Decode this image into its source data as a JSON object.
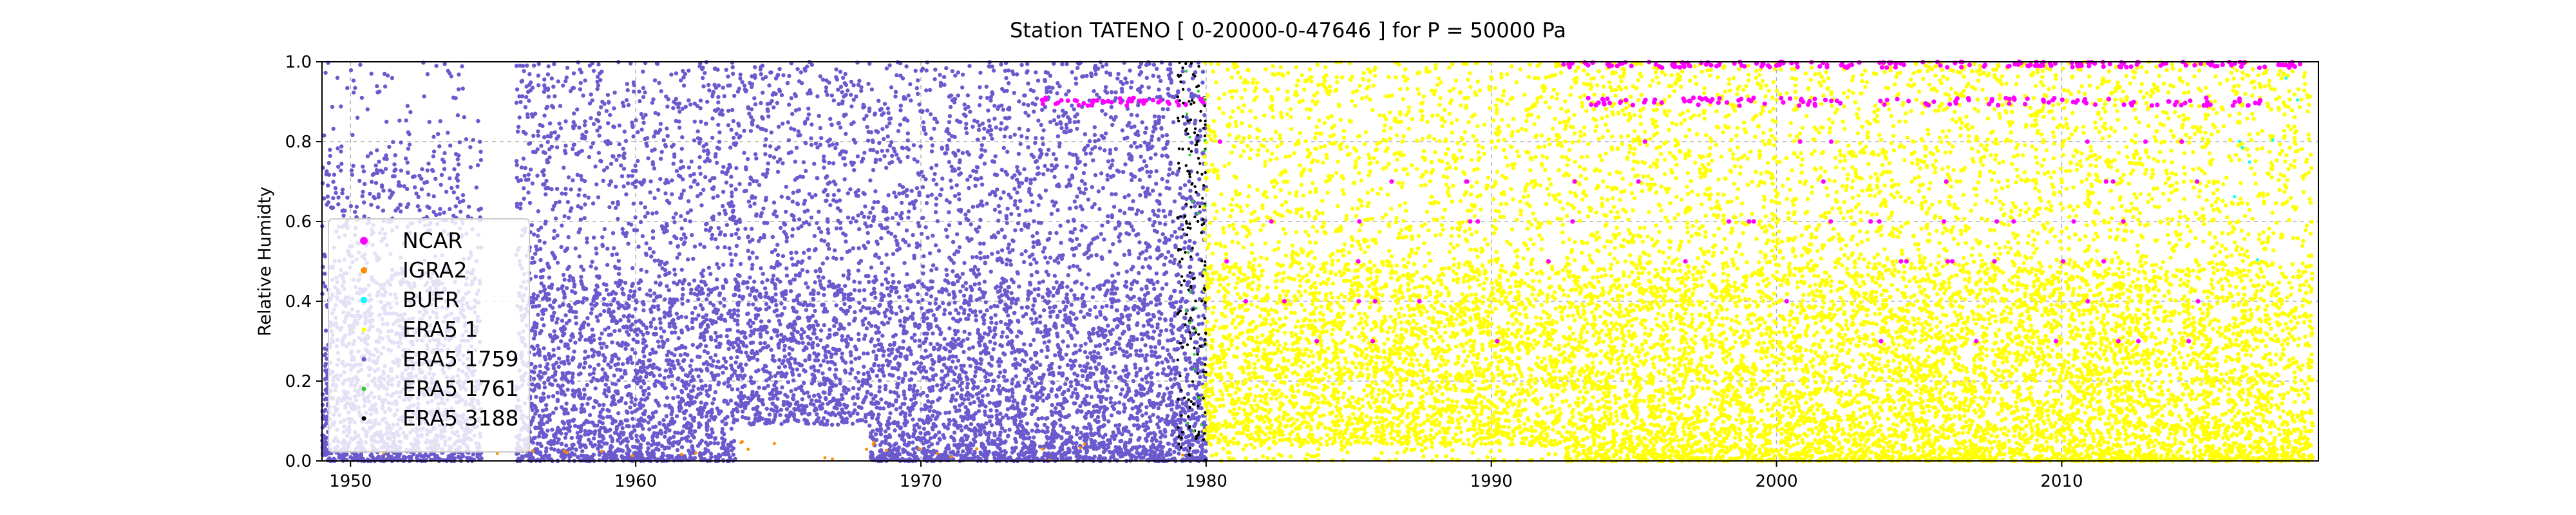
{
  "chart_data": {
    "type": "scatter",
    "title": "Station  TATENO [ 0-20000-0-47646 ]  for P = 50000 Pa",
    "xlabel": "",
    "ylabel": "Relative Humidty",
    "xlim": [
      1949.0,
      2019.0
    ],
    "ylim": [
      0.0,
      1.0
    ],
    "xticks": [
      1950,
      1960,
      1970,
      1980,
      1990,
      2000,
      2010
    ],
    "yticks": [
      0.0,
      0.2,
      0.4,
      0.6,
      0.8,
      1.0
    ],
    "xtick_labels": [
      "1950",
      "1960",
      "1970",
      "1980",
      "1990",
      "2000",
      "2010"
    ],
    "ytick_labels": [
      "0.0",
      "0.2",
      "0.4",
      "0.6",
      "0.8",
      "1.0"
    ],
    "grid": true,
    "legend_position": "center-left",
    "series": [
      {
        "name": "NCAR",
        "color": "#ff00ff",
        "x_range": [
          1951.0,
          2016.5
        ],
        "y_range": [
          0.3,
          1.0
        ],
        "approx_density": "sparse, concentrated near 0.9-1.0"
      },
      {
        "name": "IGRA2",
        "color": "#ff8c00",
        "x_range": [
          1951.0,
          1980.0
        ],
        "y_range": [
          0.0,
          1.0
        ],
        "approx_density": "very sparse"
      },
      {
        "name": "BUFR",
        "color": "#00ffff",
        "x_range": [
          2014.0,
          2019.0
        ],
        "y_range": [
          0.0,
          1.0
        ],
        "approx_density": "very sparse"
      },
      {
        "name": "ERA5 1",
        "color": "#ffff00",
        "x_range": [
          1979.8,
          2018.8
        ],
        "y_range": [
          0.0,
          1.0
        ],
        "approx_density": "dense"
      },
      {
        "name": "ERA5 1759",
        "color": "#6a5acd",
        "x_range": [
          1949.0,
          1980.0
        ],
        "y_range": [
          0.0,
          1.0
        ],
        "approx_density": "dense"
      },
      {
        "name": "ERA5 1761",
        "color": "#32cd32",
        "x_range": [
          1979.0,
          1980.0
        ],
        "y_range": [
          0.0,
          1.0
        ],
        "approx_density": "very sparse"
      },
      {
        "name": "ERA5 3188",
        "color": "#000000",
        "x_range": [
          1979.0,
          1980.0
        ],
        "y_range": [
          0.0,
          1.0
        ],
        "approx_density": "very sparse"
      }
    ]
  }
}
